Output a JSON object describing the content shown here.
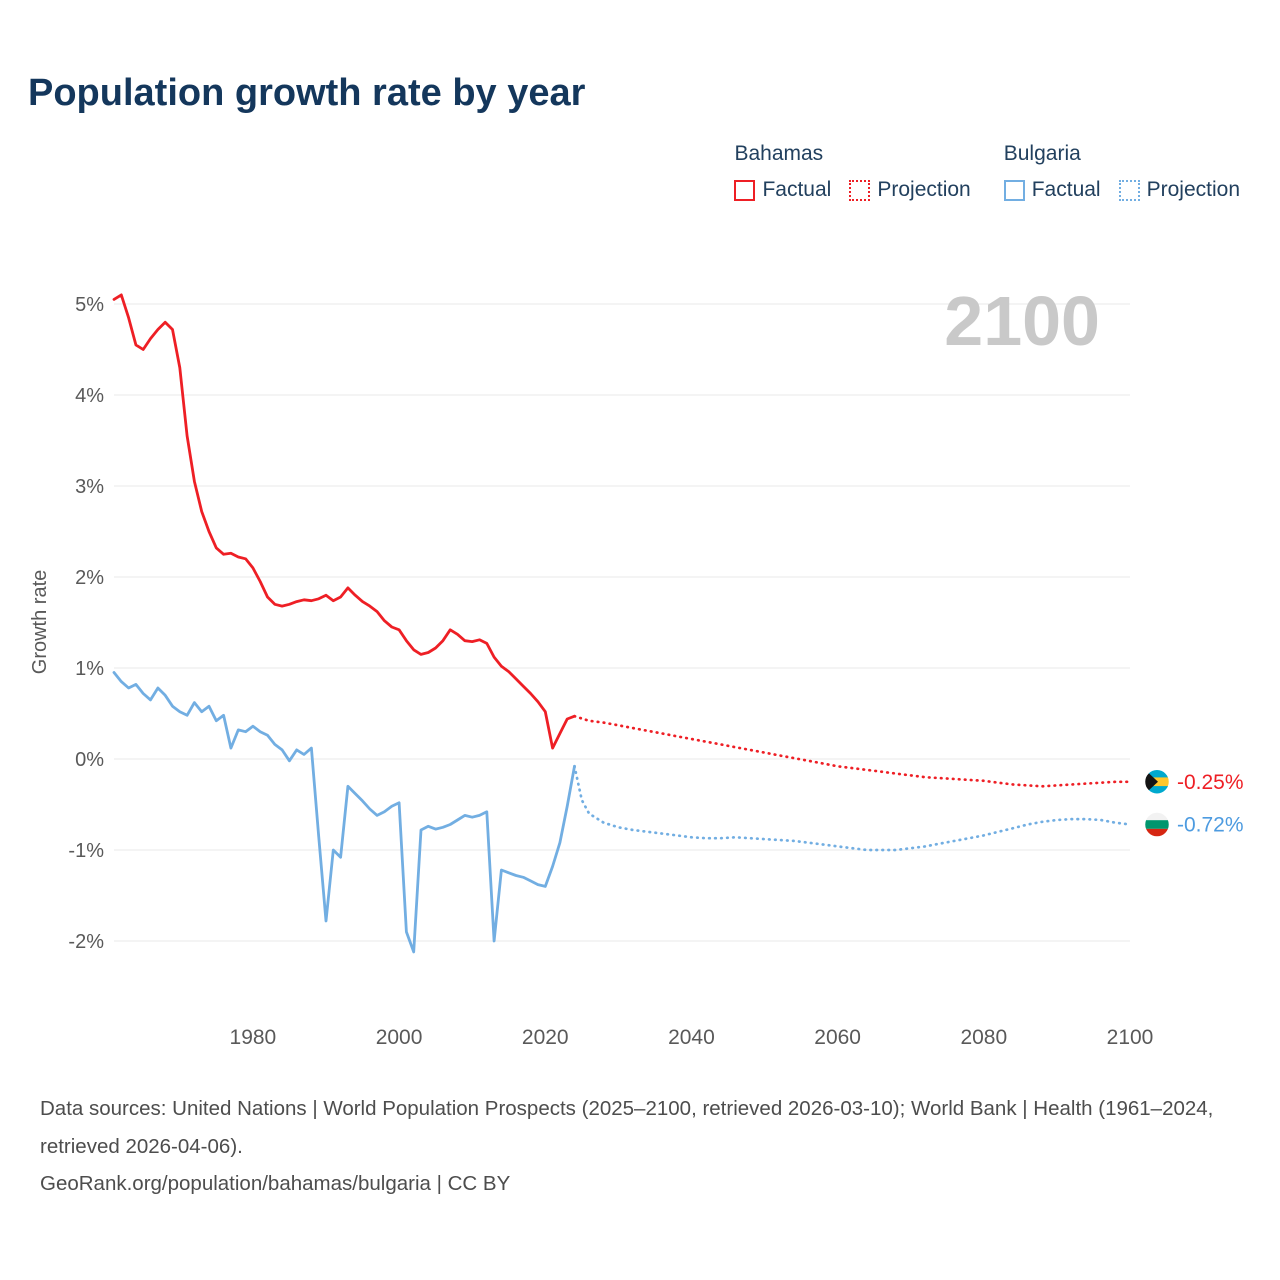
{
  "page": {
    "title": "Population growth rate by year"
  },
  "legend": {
    "groups": [
      {
        "country": "Bahamas",
        "items": [
          {
            "label": "Factual",
            "style": "solid",
            "color": "#ee1f25"
          },
          {
            "label": "Projection",
            "style": "dotted",
            "color": "#ee1f25"
          }
        ]
      },
      {
        "country": "Bulgaria",
        "items": [
          {
            "label": "Factual",
            "style": "solid",
            "color": "#72aee2"
          },
          {
            "label": "Projection",
            "style": "dotted",
            "color": "#72aee2"
          }
        ]
      }
    ]
  },
  "footer": {
    "sources": "Data sources: United Nations | World Population Prospects (2025–2100, retrieved 2026-03-10); World Bank | Health (1961–2024, retrieved 2026-04-06).",
    "georank": "GeoRank.org/population/bahamas/bulgaria | CC BY"
  },
  "chart_data": {
    "type": "line",
    "title": "Population growth rate by year",
    "xlabel": "",
    "ylabel": "Growth rate",
    "watermark": "2100",
    "grid": true,
    "legend_position": "top-right",
    "xlim": [
      1961,
      2100
    ],
    "ylim": [
      -2.5,
      5.3
    ],
    "yticks": [
      5,
      4,
      3,
      2,
      1,
      0,
      -1,
      -2
    ],
    "ytick_labels": [
      "5%",
      "4%",
      "3%",
      "2%",
      "1%",
      "0%",
      "-1%",
      "-2%"
    ],
    "xticks": [
      1980,
      2000,
      2020,
      2040,
      2060,
      2080,
      2100
    ],
    "series": [
      {
        "id": "bahamas-factual",
        "name": "Bahamas Factual",
        "color": "#ee1f25",
        "style": "solid",
        "points": [
          [
            1961,
            5.05
          ],
          [
            1962,
            5.1
          ],
          [
            1963,
            4.85
          ],
          [
            1964,
            4.55
          ],
          [
            1965,
            4.5
          ],
          [
            1966,
            4.62
          ],
          [
            1967,
            4.72
          ],
          [
            1968,
            4.8
          ],
          [
            1969,
            4.72
          ],
          [
            1970,
            4.3
          ],
          [
            1971,
            3.55
          ],
          [
            1972,
            3.05
          ],
          [
            1973,
            2.72
          ],
          [
            1974,
            2.5
          ],
          [
            1975,
            2.32
          ],
          [
            1976,
            2.25
          ],
          [
            1977,
            2.26
          ],
          [
            1978,
            2.22
          ],
          [
            1979,
            2.2
          ],
          [
            1980,
            2.1
          ],
          [
            1981,
            1.95
          ],
          [
            1982,
            1.78
          ],
          [
            1983,
            1.7
          ],
          [
            1984,
            1.68
          ],
          [
            1985,
            1.7
          ],
          [
            1986,
            1.73
          ],
          [
            1987,
            1.75
          ],
          [
            1988,
            1.74
          ],
          [
            1989,
            1.76
          ],
          [
            1990,
            1.8
          ],
          [
            1991,
            1.74
          ],
          [
            1992,
            1.78
          ],
          [
            1993,
            1.88
          ],
          [
            1994,
            1.8
          ],
          [
            1995,
            1.73
          ],
          [
            1996,
            1.68
          ],
          [
            1997,
            1.62
          ],
          [
            1998,
            1.52
          ],
          [
            1999,
            1.45
          ],
          [
            2000,
            1.42
          ],
          [
            2001,
            1.3
          ],
          [
            2002,
            1.2
          ],
          [
            2003,
            1.15
          ],
          [
            2004,
            1.17
          ],
          [
            2005,
            1.22
          ],
          [
            2006,
            1.3
          ],
          [
            2007,
            1.42
          ],
          [
            2008,
            1.37
          ],
          [
            2009,
            1.3
          ],
          [
            2010,
            1.29
          ],
          [
            2011,
            1.31
          ],
          [
            2012,
            1.27
          ],
          [
            2013,
            1.12
          ],
          [
            2014,
            1.02
          ],
          [
            2015,
            0.96
          ],
          [
            2016,
            0.88
          ],
          [
            2017,
            0.8
          ],
          [
            2018,
            0.72
          ],
          [
            2019,
            0.63
          ],
          [
            2020,
            0.52
          ],
          [
            2021,
            0.12
          ],
          [
            2022,
            0.28
          ],
          [
            2023,
            0.44
          ],
          [
            2024,
            0.47
          ]
        ]
      },
      {
        "id": "bahamas-projection",
        "name": "Bahamas Projection",
        "color": "#ee1f25",
        "style": "dotted",
        "points": [
          [
            2024,
            0.47
          ],
          [
            2026,
            0.42
          ],
          [
            2028,
            0.4
          ],
          [
            2030,
            0.37
          ],
          [
            2032,
            0.34
          ],
          [
            2034,
            0.31
          ],
          [
            2036,
            0.28
          ],
          [
            2038,
            0.25
          ],
          [
            2040,
            0.22
          ],
          [
            2042,
            0.19
          ],
          [
            2044,
            0.16
          ],
          [
            2046,
            0.13
          ],
          [
            2048,
            0.1
          ],
          [
            2050,
            0.07
          ],
          [
            2052,
            0.04
          ],
          [
            2054,
            0.01
          ],
          [
            2056,
            -0.02
          ],
          [
            2058,
            -0.05
          ],
          [
            2060,
            -0.08
          ],
          [
            2062,
            -0.1
          ],
          [
            2064,
            -0.12
          ],
          [
            2066,
            -0.14
          ],
          [
            2068,
            -0.16
          ],
          [
            2070,
            -0.18
          ],
          [
            2072,
            -0.2
          ],
          [
            2074,
            -0.21
          ],
          [
            2076,
            -0.22
          ],
          [
            2078,
            -0.23
          ],
          [
            2080,
            -0.24
          ],
          [
            2082,
            -0.26
          ],
          [
            2084,
            -0.28
          ],
          [
            2086,
            -0.29
          ],
          [
            2088,
            -0.3
          ],
          [
            2090,
            -0.29
          ],
          [
            2092,
            -0.28
          ],
          [
            2094,
            -0.27
          ],
          [
            2096,
            -0.26
          ],
          [
            2098,
            -0.25
          ],
          [
            2100,
            -0.25
          ]
        ]
      },
      {
        "id": "bulgaria-factual",
        "name": "Bulgaria Factual",
        "color": "#72aee2",
        "style": "solid",
        "points": [
          [
            1961,
            0.95
          ],
          [
            1962,
            0.85
          ],
          [
            1963,
            0.78
          ],
          [
            1964,
            0.82
          ],
          [
            1965,
            0.72
          ],
          [
            1966,
            0.65
          ],
          [
            1967,
            0.78
          ],
          [
            1968,
            0.7
          ],
          [
            1969,
            0.58
          ],
          [
            1970,
            0.52
          ],
          [
            1971,
            0.48
          ],
          [
            1972,
            0.62
          ],
          [
            1973,
            0.52
          ],
          [
            1974,
            0.58
          ],
          [
            1975,
            0.42
          ],
          [
            1976,
            0.48
          ],
          [
            1977,
            0.12
          ],
          [
            1978,
            0.32
          ],
          [
            1979,
            0.3
          ],
          [
            1980,
            0.36
          ],
          [
            1981,
            0.3
          ],
          [
            1982,
            0.26
          ],
          [
            1983,
            0.16
          ],
          [
            1984,
            0.1
          ],
          [
            1985,
            -0.02
          ],
          [
            1986,
            0.1
          ],
          [
            1987,
            0.05
          ],
          [
            1988,
            0.12
          ],
          [
            1989,
            -0.85
          ],
          [
            1990,
            -1.78
          ],
          [
            1991,
            -1.0
          ],
          [
            1992,
            -1.08
          ],
          [
            1993,
            -0.3
          ],
          [
            1994,
            -0.38
          ],
          [
            1995,
            -0.46
          ],
          [
            1996,
            -0.55
          ],
          [
            1997,
            -0.62
          ],
          [
            1998,
            -0.58
          ],
          [
            1999,
            -0.52
          ],
          [
            2000,
            -0.48
          ],
          [
            2001,
            -1.9
          ],
          [
            2002,
            -2.12
          ],
          [
            2003,
            -0.78
          ],
          [
            2004,
            -0.74
          ],
          [
            2005,
            -0.77
          ],
          [
            2006,
            -0.75
          ],
          [
            2007,
            -0.72
          ],
          [
            2008,
            -0.67
          ],
          [
            2009,
            -0.62
          ],
          [
            2010,
            -0.64
          ],
          [
            2011,
            -0.62
          ],
          [
            2012,
            -0.58
          ],
          [
            2013,
            -2.0
          ],
          [
            2014,
            -1.22
          ],
          [
            2015,
            -1.25
          ],
          [
            2016,
            -1.28
          ],
          [
            2017,
            -1.3
          ],
          [
            2018,
            -1.34
          ],
          [
            2019,
            -1.38
          ],
          [
            2020,
            -1.4
          ],
          [
            2021,
            -1.18
          ],
          [
            2022,
            -0.92
          ],
          [
            2023,
            -0.52
          ],
          [
            2024,
            -0.08
          ]
        ]
      },
      {
        "id": "bulgaria-projection",
        "name": "Bulgaria Projection",
        "color": "#72aee2",
        "style": "dotted",
        "points": [
          [
            2024,
            -0.08
          ],
          [
            2025,
            -0.45
          ],
          [
            2026,
            -0.6
          ],
          [
            2028,
            -0.7
          ],
          [
            2030,
            -0.75
          ],
          [
            2032,
            -0.78
          ],
          [
            2034,
            -0.8
          ],
          [
            2036,
            -0.82
          ],
          [
            2038,
            -0.84
          ],
          [
            2040,
            -0.86
          ],
          [
            2042,
            -0.87
          ],
          [
            2044,
            -0.87
          ],
          [
            2046,
            -0.86
          ],
          [
            2048,
            -0.87
          ],
          [
            2050,
            -0.88
          ],
          [
            2052,
            -0.89
          ],
          [
            2054,
            -0.9
          ],
          [
            2056,
            -0.92
          ],
          [
            2058,
            -0.94
          ],
          [
            2060,
            -0.96
          ],
          [
            2062,
            -0.98
          ],
          [
            2064,
            -1.0
          ],
          [
            2066,
            -1.0
          ],
          [
            2068,
            -1.0
          ],
          [
            2070,
            -0.98
          ],
          [
            2072,
            -0.96
          ],
          [
            2074,
            -0.93
          ],
          [
            2076,
            -0.9
          ],
          [
            2078,
            -0.87
          ],
          [
            2080,
            -0.84
          ],
          [
            2082,
            -0.8
          ],
          [
            2084,
            -0.76
          ],
          [
            2086,
            -0.72
          ],
          [
            2088,
            -0.69
          ],
          [
            2090,
            -0.67
          ],
          [
            2092,
            -0.66
          ],
          [
            2094,
            -0.66
          ],
          [
            2096,
            -0.67
          ],
          [
            2098,
            -0.7
          ],
          [
            2100,
            -0.72
          ]
        ]
      }
    ],
    "end_labels": [
      {
        "country": "Bahamas",
        "flag": "bahamas",
        "value": "-0.25%",
        "value_num": -0.25,
        "color": "#ee1f25"
      },
      {
        "country": "Bulgaria",
        "flag": "bulgaria",
        "value": "-0.72%",
        "value_num": -0.72,
        "color": "#4d9be0"
      }
    ]
  }
}
